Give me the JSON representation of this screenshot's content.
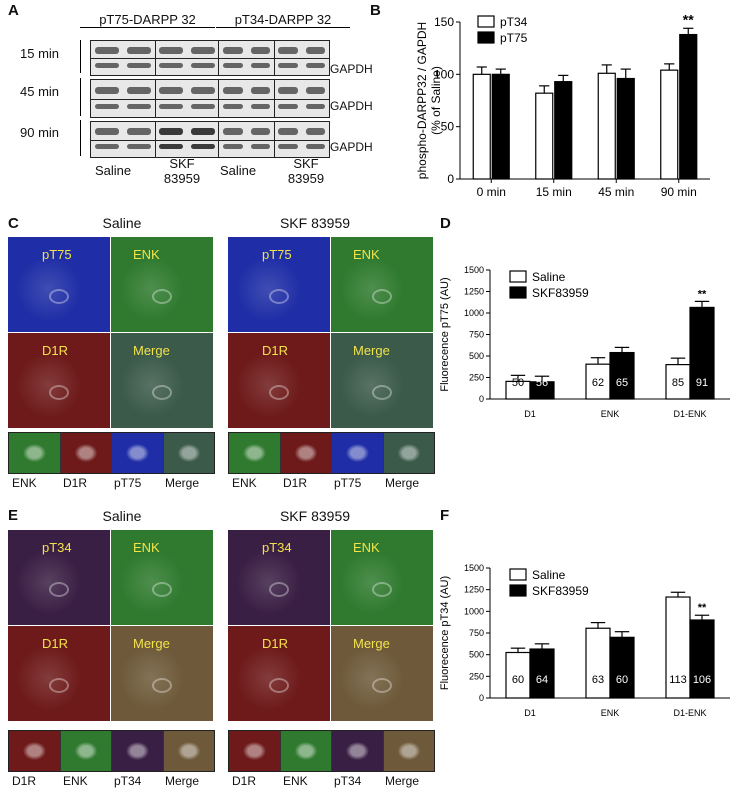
{
  "panels": {
    "A": {
      "letter": "A",
      "titles": [
        "pT75-DARPP 32",
        "pT34-DARPP 32"
      ],
      "times": [
        "15 min",
        "45 min",
        "90 min"
      ],
      "loading": "GAPDH",
      "conditions": [
        "Saline",
        "SKF 83959"
      ],
      "band_color": "#3a3a3a"
    },
    "B": {
      "letter": "B"
    },
    "C": {
      "letter": "C",
      "groups": [
        "Saline",
        "SKF 83959"
      ],
      "quad_labels": [
        "pT75",
        "ENK",
        "D1R",
        "Merge"
      ],
      "strip_labels": [
        "ENK",
        "D1R",
        "pT75",
        "Merge"
      ],
      "colors": {
        "blue": "#1f2ea6",
        "green": "#2f7a2f",
        "red": "#6e1a1a",
        "merge": "#3b5a4a",
        "label": "#f2e34a"
      }
    },
    "D": {
      "letter": "D"
    },
    "E": {
      "letter": "E",
      "groups": [
        "Saline",
        "SKF 83959"
      ],
      "quad_labels": [
        "pT34",
        "ENK",
        "D1R",
        "Merge"
      ],
      "strip_labels": [
        "D1R",
        "ENK",
        "pT34",
        "Merge"
      ],
      "colors": {
        "purple": "#3a1f44",
        "green": "#2f7a2f",
        "red": "#6e1a1a",
        "merge": "#6e5a3a",
        "label": "#f2e34a"
      }
    },
    "F": {
      "letter": "F"
    }
  },
  "chart_data": [
    {
      "panel": "B",
      "type": "bar",
      "ylabel": "phospho-DARPP32 / GAPDH\n(% of Saline)",
      "categories": [
        "0 min",
        "15 min",
        "45 min",
        "90 min"
      ],
      "series": [
        {
          "name": "pT34",
          "values": [
            100,
            82,
            101,
            104
          ],
          "errors": [
            7,
            7,
            8,
            6
          ],
          "color": "#ffffff"
        },
        {
          "name": "pT75",
          "values": [
            100,
            93,
            96,
            138
          ],
          "errors": [
            5,
            6,
            9,
            6
          ],
          "color": "#000000"
        }
      ],
      "ylim": [
        0,
        150
      ],
      "yticks": [
        0,
        50,
        100,
        150
      ],
      "annotations": [
        {
          "category": "90 min",
          "series": "pT75",
          "text": "**"
        }
      ],
      "legend": "top-left"
    },
    {
      "panel": "D",
      "type": "bar",
      "ylabel": "Fluorecence pT75 (AU)",
      "categories": [
        "D1",
        "ENK",
        "D1-ENK"
      ],
      "series": [
        {
          "name": "Saline",
          "values": [
            205,
            405,
            400
          ],
          "errors": [
            70,
            75,
            75
          ],
          "n": [
            "50",
            "62",
            "85"
          ],
          "color": "#ffffff"
        },
        {
          "name": "SKF83959",
          "values": [
            200,
            540,
            1065
          ],
          "errors": [
            65,
            60,
            70
          ],
          "n": [
            "56",
            "65",
            "91"
          ],
          "color": "#000000"
        }
      ],
      "ylim": [
        0,
        1500
      ],
      "yticks": [
        0,
        250,
        500,
        750,
        1000,
        1250,
        1500
      ],
      "annotations": [
        {
          "category": "D1-ENK",
          "series": "SKF83959",
          "text": "**"
        }
      ],
      "legend": "top-left"
    },
    {
      "panel": "F",
      "type": "bar",
      "ylabel": "Fluorecence pT34 (AU)",
      "categories": [
        "D1",
        "ENK",
        "D1-ENK"
      ],
      "series": [
        {
          "name": "Saline",
          "values": [
            525,
            805,
            1165
          ],
          "errors": [
            50,
            65,
            55
          ],
          "n": [
            "60",
            "63",
            "113"
          ],
          "color": "#ffffff"
        },
        {
          "name": "SKF83959",
          "values": [
            565,
            700,
            900
          ],
          "errors": [
            60,
            65,
            55
          ],
          "n": [
            "64",
            "60",
            "106"
          ],
          "color": "#000000"
        }
      ],
      "ylim": [
        0,
        1500
      ],
      "yticks": [
        0,
        250,
        500,
        750,
        1000,
        1250,
        1500
      ],
      "annotations": [
        {
          "category": "D1-ENK",
          "series": "SKF83959",
          "text": "**"
        }
      ],
      "legend": "top-left"
    }
  ]
}
